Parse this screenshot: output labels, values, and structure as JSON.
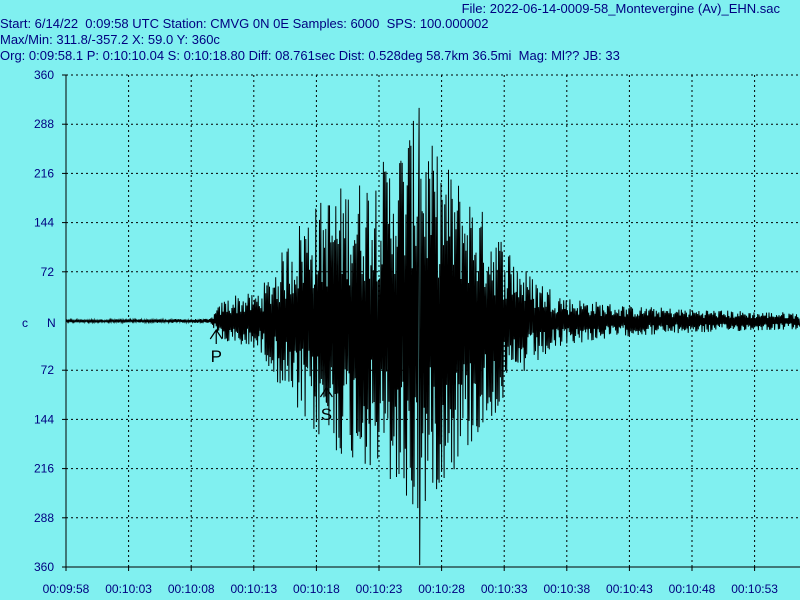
{
  "header": {
    "file": "File: 2022-06-14-0009-58_Montevergine (Av)_EHN.sac",
    "line1": "Start: 6/14/22  0:09:58 UTC Station: CMVG 0N 0E Samples: 6000  SPS: 100.000002",
    "line2": "Max/Min: 311.8/-357.2 X: 59.0 Y: 360c",
    "line3": "Org: 0:09:58.1 P: 0:10:10.04 S: 0:10:18.80 Diff: 08.761sec Dist: 0.528deg 58.7km 36.5mi  Mag: Ml?? JB: 33"
  },
  "colors": {
    "background": "#80f0f0",
    "text": "#000080",
    "trace": "#000000",
    "grid": "#000000"
  },
  "chart_data": {
    "type": "line",
    "title": "",
    "xlabel": "",
    "ylabel": "",
    "grid": true,
    "channel_marker": "c",
    "component_label": "N",
    "y_tick_labels": [
      "360",
      "288",
      "216",
      "144",
      "72",
      "72",
      "144",
      "216",
      "288",
      "360"
    ],
    "y_tick_values": [
      360,
      288,
      216,
      144,
      72,
      -72,
      -144,
      -216,
      -288,
      -360
    ],
    "ylim": [
      -360,
      360
    ],
    "x_tick_labels": [
      "00:09:58",
      "00:10:03",
      "00:10:08",
      "00:10:13",
      "00:10:18",
      "00:10:23",
      "00:10:28",
      "00:10:33",
      "00:10:38",
      "00:10:43",
      "00:10:48",
      "00:10:53"
    ],
    "x_range_seconds": [
      0,
      60
    ],
    "picks": [
      {
        "label": "P",
        "time_s": 12.0
      },
      {
        "label": "S",
        "time_s": 20.8
      }
    ],
    "max": 311.8,
    "min": -357.2,
    "peak_time_s": 28.2,
    "envelope": {
      "time_s": [
        0,
        11.5,
        12.5,
        13.5,
        15,
        16,
        17.5,
        19,
        20.5,
        22,
        23.5,
        25,
        26.5,
        28,
        29.5,
        31,
        33,
        35,
        37,
        40,
        45,
        50,
        55,
        60
      ],
      "amplitude": [
        2,
        3,
        30,
        40,
        40,
        60,
        110,
        160,
        180,
        200,
        210,
        230,
        260,
        300,
        250,
        220,
        170,
        120,
        70,
        35,
        22,
        18,
        14,
        12
      ]
    }
  }
}
